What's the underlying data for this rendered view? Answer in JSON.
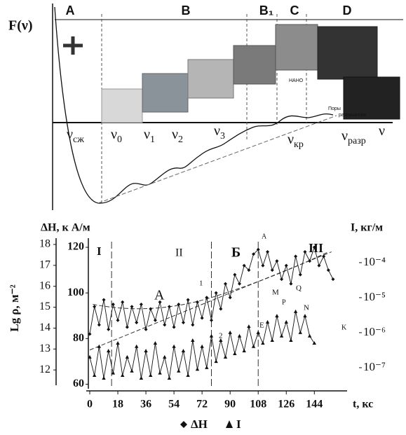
{
  "diagram": {
    "title": "F(ν)",
    "zones": [
      "A",
      "B",
      "B₁",
      "C",
      "D"
    ],
    "nu_labels": [
      {
        "symbol": "ν",
        "index": "сж"
      },
      {
        "symbol": "ν",
        "index": "0"
      },
      {
        "symbol": "ν",
        "index": "1"
      },
      {
        "symbol": "ν",
        "index": "2"
      },
      {
        "symbol": "ν",
        "index": "3"
      },
      {
        "symbol": "ν",
        "index": "кр"
      },
      {
        "symbol": "ν",
        "index": "разр"
      },
      {
        "symbol": "ν"
      }
    ],
    "image_texts": [
      "НАНО",
      "Поры",
      "разрушение"
    ]
  },
  "chart_data": {
    "type": "line",
    "xlabel": "t, кс",
    "ylabel": "ΔH, к А/м",
    "y2label": "I, кг/м",
    "y3label": "Lg ρ, м⁻²",
    "xlim": [
      0,
      165
    ],
    "xticks": [
      0,
      18,
      36,
      54,
      72,
      90,
      108,
      126,
      144
    ],
    "ylim": [
      58,
      124
    ],
    "yticks": [
      60,
      80,
      100,
      120
    ],
    "y2lim": [
      2.5e-08,
      0.0005
    ],
    "y2log": true,
    "y2ticks": [
      {
        "value": 0.0001,
        "label": "10⁻⁴"
      },
      {
        "value": 1e-05,
        "label": "10⁻⁵"
      },
      {
        "value": 1e-06,
        "label": "10⁻⁶"
      },
      {
        "value": 1e-07,
        "label": "10⁻⁷"
      }
    ],
    "y3lim": [
      11.1,
      18.3
    ],
    "y3ticks": [
      12,
      13,
      14,
      15,
      16,
      17,
      18
    ],
    "series": [
      {
        "name": "ΔH",
        "color": "#111111",
        "marker": "diamond",
        "x": [
          0,
          3,
          6,
          9,
          12,
          15,
          18,
          21,
          24,
          27,
          30,
          33,
          36,
          39,
          42,
          45,
          48,
          51,
          54,
          57,
          60,
          63,
          66,
          69,
          72,
          75,
          78,
          81,
          84,
          87,
          90,
          93,
          96,
          99,
          102,
          105,
          108,
          111,
          114,
          117,
          120,
          123,
          126,
          129,
          132,
          135,
          138,
          141,
          144,
          147,
          150,
          153,
          156
        ],
        "values": [
          82,
          94,
          86,
          97,
          84,
          95,
          88,
          96,
          85,
          94,
          87,
          95,
          84,
          93,
          88,
          96,
          86,
          94,
          85,
          95,
          87,
          97,
          86,
          96,
          89,
          98,
          88,
          100,
          93,
          104,
          98,
          108,
          104,
          112,
          110,
          117,
          119,
          112,
          118,
          110,
          114,
          106,
          112,
          104,
          116,
          108,
          118,
          114,
          120,
          112,
          116,
          110,
          106
        ]
      },
      {
        "name": "I",
        "color": "#111111",
        "marker": "triangle",
        "axis": "y2",
        "x": [
          0,
          3,
          6,
          9,
          12,
          15,
          18,
          21,
          24,
          27,
          30,
          33,
          36,
          39,
          42,
          45,
          48,
          51,
          54,
          57,
          60,
          63,
          66,
          69,
          72,
          75,
          78,
          81,
          84,
          87,
          90,
          93,
          96,
          99,
          102,
          105,
          108,
          111,
          114,
          117,
          120,
          123,
          126,
          129,
          132,
          135,
          138,
          141,
          144
        ],
        "values": [
          2e-07,
          6e-08,
          4e-07,
          5e-08,
          3e-07,
          7e-08,
          5e-07,
          6e-08,
          2e-07,
          8e-08,
          4e-07,
          5e-08,
          3e-07,
          6e-08,
          5e-07,
          7e-08,
          2e-07,
          5e-08,
          4e-07,
          8e-08,
          3e-07,
          6e-08,
          6e-07,
          9e-08,
          4e-07,
          1e-07,
          8e-07,
          1.5e-07,
          6e-07,
          2e-07,
          1e-06,
          2.5e-07,
          8e-07,
          3e-07,
          1.5e-06,
          4e-07,
          1e-06,
          5e-07,
          2e-06,
          6e-07,
          3e-06,
          8e-07,
          2e-06,
          6e-07,
          4e-06,
          1e-06,
          3e-06,
          8e-07,
          5e-07
        ]
      }
    ],
    "annotations": [
      "I",
      "II",
      "Б",
      "A",
      "III",
      "1",
      "2",
      "A",
      "E",
      "M",
      "P",
      "Q",
      "N",
      "K"
    ]
  }
}
